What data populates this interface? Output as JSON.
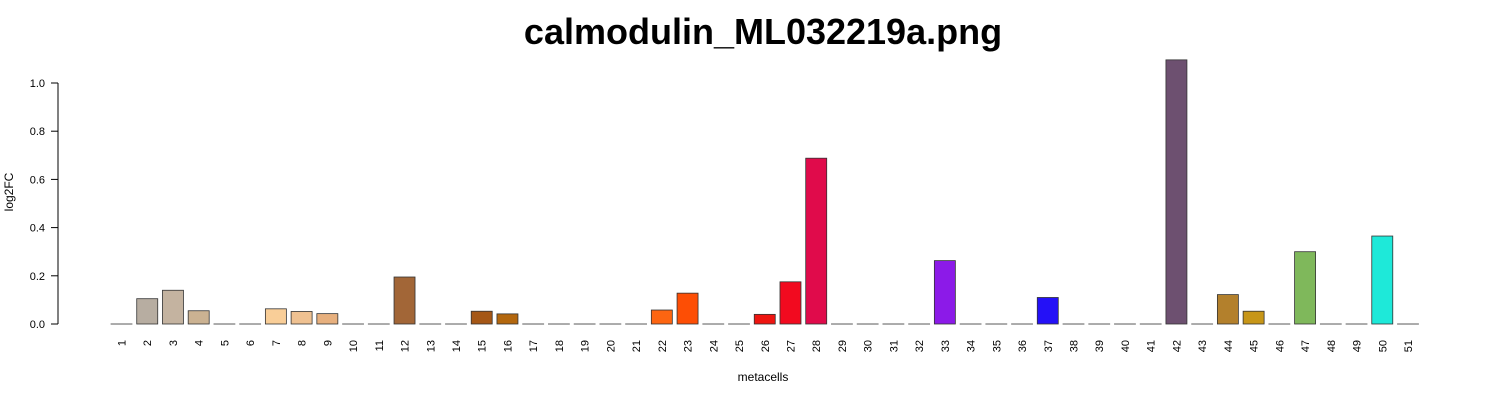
{
  "chart_data": {
    "type": "bar",
    "title": "calmodulin_ML032219a.png",
    "xlabel": "metacells",
    "ylabel": "log2FC",
    "ylim": [
      0,
      1.0
    ],
    "yticks": [
      "0.0",
      "0.2",
      "0.4",
      "0.6",
      "0.8",
      "1.0"
    ],
    "grid": false,
    "categories": [
      "1",
      "2",
      "3",
      "4",
      "5",
      "6",
      "7",
      "8",
      "9",
      "10",
      "11",
      "12",
      "13",
      "14",
      "15",
      "16",
      "17",
      "18",
      "19",
      "20",
      "21",
      "22",
      "23",
      "24",
      "25",
      "26",
      "27",
      "28",
      "29",
      "30",
      "31",
      "32",
      "33",
      "34",
      "35",
      "36",
      "37",
      "38",
      "39",
      "40",
      "41",
      "42",
      "43",
      "44",
      "45",
      "46",
      "47",
      "48",
      "49",
      "50",
      "51"
    ],
    "values": [
      0,
      0.105,
      0.14,
      0.055,
      0,
      0,
      0.063,
      0.052,
      0.043,
      0,
      0,
      0.195,
      0,
      0,
      0.053,
      0.042,
      0,
      0,
      0,
      0,
      0,
      0.058,
      0.128,
      0,
      0,
      0.04,
      0.175,
      0.688,
      0,
      0,
      0,
      0,
      0.263,
      0,
      0,
      0,
      0.11,
      0,
      0,
      0,
      0,
      1.096,
      0,
      0.122,
      0.053,
      0,
      0.3,
      0,
      0,
      0.365,
      0
    ],
    "colors": [
      "#f0e6d2",
      "#b7ada1",
      "#c4b3a0",
      "#cbb292",
      "#e8d5b5",
      "#e8d5b5",
      "#f9ce98",
      "#efc191",
      "#e7b07e",
      "#d9b891",
      "#d4a97a",
      "#a26637",
      "#b07a45",
      "#c58a4a",
      "#a55716",
      "#b3670e",
      "#d98a3a",
      "#e07b2a",
      "#e86b1a",
      "#f0601a",
      "#f55a0f",
      "#fd6511",
      "#fd4e05",
      "#f74a1c",
      "#f2301e",
      "#ee1510",
      "#f20a1f",
      "#e00b4b",
      "#d8264a",
      "#c02550",
      "#a0305a",
      "#8a2ba0",
      "#8c1ae8",
      "#6b1ae8",
      "#4a1ae8",
      "#3a12f0",
      "#2411f7",
      "#3a3ad0",
      "#5050a8",
      "#604080",
      "#6a4a7a",
      "#6d5070",
      "#8a6a50",
      "#b3802c",
      "#c79618",
      "#a8b050",
      "#7fb85b",
      "#60c070",
      "#40d090",
      "#1ee9d9",
      "#20c0c0"
    ]
  }
}
